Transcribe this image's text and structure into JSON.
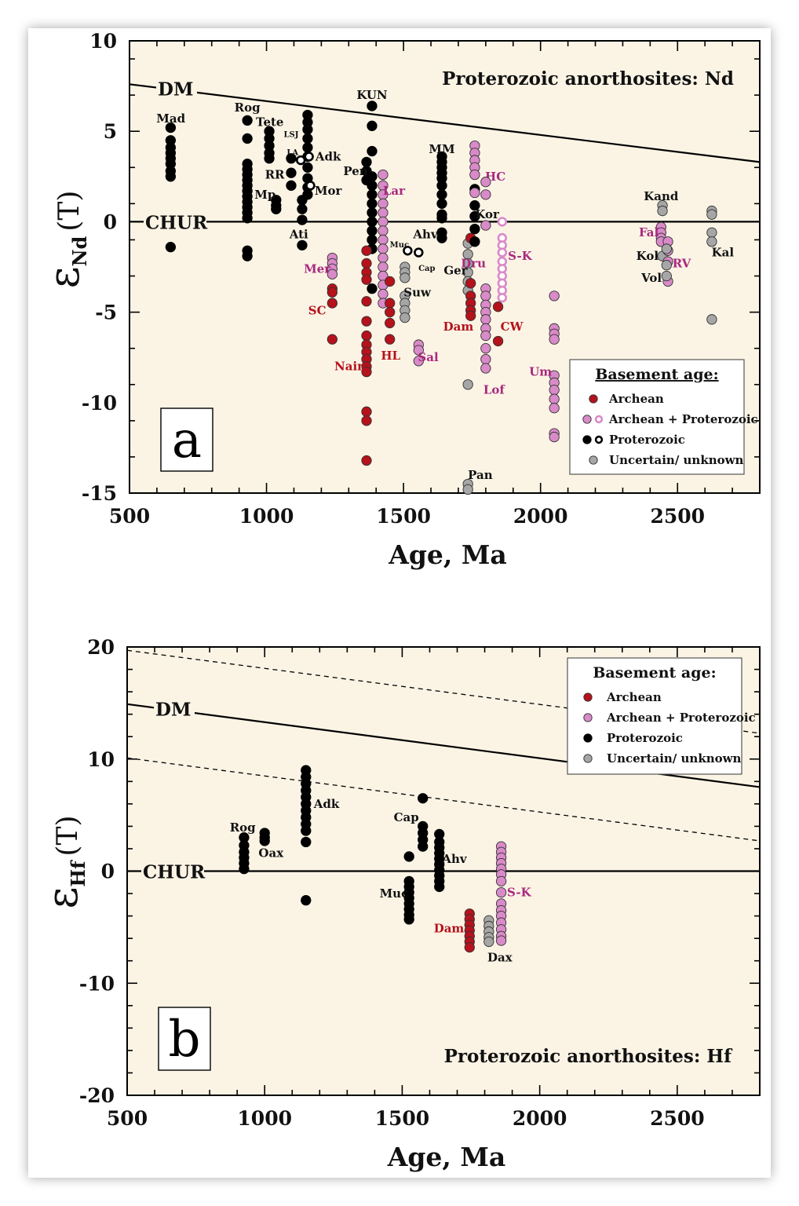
{
  "colors": {
    "archean": "#b5121b",
    "archean_proterozoic": "#d98ac8",
    "proterozoic": "#000000",
    "unknown": "#a6a6a6",
    "background": "#fbf4e5"
  },
  "chart_data": [
    {
      "type": "scatter",
      "panel_letter": "a",
      "title": "Proterozoic anorthosites: Nd",
      "xlabel": "Age, Ma",
      "ylabel_symbol": "ε",
      "ylabel_sub": "Nd",
      "ylabel_tail": "(T)",
      "xlim": [
        500,
        2800
      ],
      "ylim": [
        -15,
        10
      ],
      "xticks": [
        500,
        1000,
        1500,
        2000,
        2500
      ],
      "yticks": [
        -15,
        -10,
        -5,
        0,
        5,
        10
      ],
      "ref_lines": [
        {
          "label": "DM",
          "x": [
            500,
            2800
          ],
          "y": [
            7.6,
            3.3
          ],
          "style": "solid"
        },
        {
          "label": "CHUR",
          "x": [
            500,
            2800
          ],
          "y": [
            0,
            0
          ],
          "style": "solid"
        }
      ],
      "legend": {
        "title": "Basement age:",
        "placement": "bottom-right",
        "items": [
          {
            "label": "Archean",
            "key": "archean",
            "open": false
          },
          {
            "label": "Archean + Proterozoic",
            "key": "archean_proterozoic",
            "open": true
          },
          {
            "label": "Proterozoic",
            "key": "proterozoic",
            "open": true
          },
          {
            "label": "Uncertain/  unknown",
            "key": "unknown",
            "open": false
          }
        ]
      },
      "groups": [
        {
          "label": "Mad",
          "key": "proterozoic",
          "x": 650,
          "y": [
            5.2,
            4.5,
            4.1,
            3.8,
            3.5,
            3.2,
            2.8,
            2.5,
            -1.4
          ],
          "lx": 651,
          "ly": 5.7
        },
        {
          "label": "Rog",
          "key": "proterozoic",
          "x": 930,
          "y": [
            5.6,
            4.6,
            3.2,
            2.9,
            2.6,
            2.3,
            2.0,
            1.7,
            1.4,
            1.1,
            0.8,
            0.5,
            0.2,
            -1.6,
            -1.9
          ],
          "lx": 930,
          "ly": 6.3
        },
        {
          "label": "Tete",
          "key": "proterozoic",
          "x": 1010,
          "y": [
            5.0,
            4.6,
            4.2,
            3.8,
            3.5
          ],
          "lx": 1012,
          "ly": 5.5
        },
        {
          "label": "Mp",
          "key": "proterozoic",
          "x": 1035,
          "y": [
            1.2,
            0.9,
            0.7
          ],
          "lx": 995,
          "ly": 1.5
        },
        {
          "label": "RR",
          "key": "proterozoic",
          "x": 1090,
          "y": [
            3.5,
            2.7,
            2.0
          ],
          "lx": 1030,
          "ly": 2.6
        },
        {
          "label": "Ati",
          "key": "proterozoic",
          "x": 1130,
          "y": [
            1.2,
            0.7,
            0.1,
            -1.3
          ],
          "lx": 1118,
          "ly": -0.7
        },
        {
          "label": "LSJ",
          "key": "proterozoic",
          "x": 1150,
          "y": [
            5.9,
            5.5,
            5.1,
            4.6,
            4.1,
            3.6,
            3.0,
            2.4,
            1.9,
            1.5
          ],
          "lx": 1090,
          "ly": 4.9,
          "small": true
        },
        {
          "label": "LA",
          "key": "proterozoic",
          "open": true,
          "x": 1125,
          "y": [
            3.4
          ],
          "lx": 1095,
          "ly": 3.9,
          "small": true
        },
        {
          "label": "Adk",
          "key": "proterozoic",
          "open": true,
          "x": 1155,
          "y": [
            3.6
          ],
          "lx": 1225,
          "ly": 3.6
        },
        {
          "label": "Mor",
          "key": "proterozoic",
          "open": true,
          "x": 1160,
          "y": [
            2.0
          ],
          "lx": 1225,
          "ly": 1.7
        },
        {
          "label": "KUN",
          "key": "proterozoic",
          "x": 1385,
          "y": [
            6.4,
            5.3,
            3.9,
            2.5,
            2.0,
            1.5,
            1.0,
            0.5,
            0.0,
            -0.5,
            -1.0,
            -1.5,
            -3.7
          ],
          "lx": 1385,
          "ly": 7.0
        },
        {
          "label": "Pen",
          "key": "proterozoic",
          "x": 1365,
          "y": [
            3.3,
            2.8,
            2.3
          ],
          "lx": 1325,
          "ly": 2.8
        },
        {
          "label": "Nain",
          "key": "archean",
          "x": 1365,
          "y": [
            -1.6,
            -2.3,
            -2.8,
            -3.2,
            -4.4,
            -5.5,
            -6.3,
            -6.8,
            -7.2,
            -7.6,
            -8.0,
            -8.3,
            -10.5,
            -11.0,
            -13.2
          ],
          "lx": 1305,
          "ly": -8.0
        },
        {
          "label": "Mer",
          "key": "archean_proterozoic",
          "x": 1240,
          "y": [
            -2.0,
            -2.3,
            -2.6,
            -2.9
          ],
          "lx": 1185,
          "ly": -2.6
        },
        {
          "label": "SC",
          "key": "archean",
          "x": 1240,
          "y": [
            -3.7,
            -3.9,
            -4.5,
            -6.5
          ],
          "lx": 1185,
          "ly": -4.9
        },
        {
          "label": "Lar",
          "key": "archean_proterozoic",
          "x": 1425,
          "y": [
            2.6,
            2.0,
            1.5,
            1.0,
            0.5,
            0.0,
            -0.5,
            -1.0,
            -1.5,
            -2.0,
            -2.5,
            -3.0,
            -3.5,
            -4.0,
            -4.5
          ],
          "lx": 1465,
          "ly": 1.7
        },
        {
          "label": "HL",
          "key": "archean",
          "x": 1450,
          "y": [
            -3.3,
            -4.5,
            -5.0,
            -5.6,
            -6.5
          ],
          "lx": 1453,
          "ly": -7.4
        },
        {
          "label": "Sal",
          "key": "archean_proterozoic",
          "x": 1555,
          "y": [
            -6.8,
            -7.1,
            -7.7
          ],
          "lx": 1590,
          "ly": -7.5
        },
        {
          "label": "Muc",
          "key": "proterozoic",
          "open": true,
          "x": 1515,
          "y": [
            -1.6
          ],
          "lx": 1485,
          "ly": -1.2,
          "small": true
        },
        {
          "label": "Cap",
          "key": "proterozoic",
          "open": true,
          "x": 1555,
          "y": [
            -1.7
          ],
          "lx": 1585,
          "ly": -2.5,
          "small": true
        },
        {
          "label": "Suw",
          "key": "unknown",
          "x": 1505,
          "y": [
            -2.5,
            -2.8,
            -3.1,
            -4.1,
            -4.5,
            -4.9,
            -5.3
          ],
          "lx": 1550,
          "ly": -3.9
        },
        {
          "label": "Ahv",
          "key": "proterozoic",
          "x": 1640,
          "y": [
            3.6,
            3.3,
            3.0,
            2.7,
            2.4,
            2.0,
            1.5,
            1.0,
            0.4,
            0.2,
            -0.6,
            -0.9
          ],
          "lx": 1580,
          "ly": -0.7
        },
        {
          "label": "MM",
          "key": "proterozoic",
          "x": 1640,
          "y": [],
          "lx": 1640,
          "ly": 4.0
        },
        {
          "label": "Ger",
          "key": "unknown",
          "x": 1735,
          "y": [
            -1.2,
            -1.8,
            -2.3,
            -2.8,
            -3.3,
            -3.8,
            -9.0
          ],
          "lx": 1690,
          "ly": -2.7
        },
        {
          "label": "Pan",
          "key": "unknown",
          "x": 1735,
          "y": [
            -14.5,
            -14.8
          ],
          "lx": 1780,
          "ly": -14.0
        },
        {
          "label": "Dam",
          "key": "archean",
          "x": 1745,
          "y": [
            -0.9,
            -3.4,
            -4.1,
            -4.5,
            -4.9,
            -5.2
          ],
          "lx": 1700,
          "ly": -5.8
        },
        {
          "label": "Kor",
          "key": "proterozoic",
          "x": 1760,
          "y": [
            1.8,
            0.9,
            0.3,
            -0.4,
            -1.1
          ],
          "lx": 1805,
          "ly": 0.4
        },
        {
          "label": "HC",
          "key": "archean_proterozoic",
          "x": 1760,
          "y": [
            4.2,
            3.8,
            3.4,
            3.0,
            2.6,
            1.6
          ],
          "lx": 1835,
          "ly": 2.5
        },
        {
          "label": "Dru",
          "key": "archean_proterozoic",
          "x": 1800,
          "y": [
            2.2,
            1.5,
            -0.2,
            -3.7,
            -4.1,
            -4.6,
            -5.0,
            -5.4,
            -5.9,
            -6.3,
            -7.0,
            -7.6,
            -8.1
          ],
          "lx": 1755,
          "ly": -2.3
        },
        {
          "label": "Lof",
          "key": "archean_proterozoic",
          "x": 1800,
          "y": [],
          "lx": 1830,
          "ly": -9.3
        },
        {
          "label": "S-K",
          "key": "archean_proterozoic",
          "open": true,
          "x": 1860,
          "y": [
            0.0,
            -0.9,
            -1.3,
            -1.7,
            -2.2,
            -2.6,
            -3.0,
            -3.4,
            -3.8,
            -4.2
          ],
          "lx": 1925,
          "ly": -1.9
        },
        {
          "label": "CW",
          "key": "archean",
          "x": 1845,
          "y": [
            -4.7,
            -6.6
          ],
          "lx": 1895,
          "ly": -5.8
        },
        {
          "label": "Um",
          "key": "archean_proterozoic",
          "x": 2050,
          "y": [
            -4.1,
            -5.9,
            -6.2,
            -6.5,
            -8.5,
            -8.9,
            -9.3,
            -9.8,
            -10.3,
            -11.7,
            -11.9
          ],
          "lx": 2000,
          "ly": -8.3
        },
        {
          "label": "Kand",
          "key": "unknown",
          "x": 2445,
          "y": [
            0.9,
            0.6
          ],
          "lx": 2440,
          "ly": 1.4
        },
        {
          "label": "Fal",
          "key": "archean_proterozoic",
          "x": 2440,
          "y": [
            -0.3,
            -0.6,
            -0.9,
            -1.1
          ],
          "lx": 2395,
          "ly": -0.6
        },
        {
          "label": "Kol",
          "key": "unknown",
          "x": 2445,
          "y": [
            -1.9
          ],
          "lx": 2390,
          "ly": -1.9
        },
        {
          "label": "RV",
          "key": "archean_proterozoic",
          "x": 2465,
          "y": [
            -1.1,
            -1.6,
            -2.2,
            -3.3
          ],
          "lx": 2515,
          "ly": -2.3
        },
        {
          "label": "Vol",
          "key": "unknown",
          "x": 2460,
          "y": [
            -1.5,
            -2.4,
            -3.0
          ],
          "lx": 2405,
          "ly": -3.1
        },
        {
          "label": "Kal",
          "key": "unknown",
          "x": 2625,
          "y": [
            0.6,
            0.4,
            -0.6,
            -1.1,
            -5.4
          ],
          "lx": 2665,
          "ly": -1.7
        }
      ]
    },
    {
      "type": "scatter",
      "panel_letter": "b",
      "title": "Proterozoic anorthosites: Hf",
      "xlabel": "Age, Ma",
      "ylabel_symbol": "ε",
      "ylabel_sub": "Hf",
      "ylabel_tail": "(T)",
      "xlim": [
        500,
        2800
      ],
      "ylim": [
        -20,
        20
      ],
      "xticks": [
        500,
        1000,
        1500,
        2000,
        2500
      ],
      "yticks": [
        -20,
        -10,
        0,
        10,
        20
      ],
      "ref_lines": [
        {
          "label": "DM",
          "x": [
            500,
            2800
          ],
          "y": [
            14.9,
            7.5
          ],
          "style": "solid"
        },
        {
          "label": "",
          "x": [
            500,
            2800
          ],
          "y": [
            19.7,
            12.3
          ],
          "style": "dashed"
        },
        {
          "label": "",
          "x": [
            500,
            2800
          ],
          "y": [
            10.1,
            2.7
          ],
          "style": "dashed"
        },
        {
          "label": "CHUR",
          "x": [
            500,
            2800
          ],
          "y": [
            0,
            0
          ],
          "style": "solid"
        }
      ],
      "legend": {
        "title": "Basement age:",
        "placement": "top-right",
        "items": [
          {
            "label": "Archean",
            "key": "archean",
            "open": false
          },
          {
            "label": "Archean + Proterozoic",
            "key": "archean_proterozoic",
            "open": false
          },
          {
            "label": "Proterozoic",
            "key": "proterozoic",
            "open": false
          },
          {
            "label": "Uncertain/  unknown",
            "key": "unknown",
            "open": false
          }
        ]
      },
      "groups": [
        {
          "label": "Rog",
          "key": "proterozoic",
          "x": 925,
          "y": [
            3.0,
            2.3,
            1.7,
            1.2,
            0.7,
            0.2
          ],
          "lx": 920,
          "ly": 3.9
        },
        {
          "label": "Oax",
          "key": "proterozoic",
          "x": 1000,
          "y": [
            3.4,
            3.0,
            2.7
          ],
          "lx": 1023,
          "ly": 1.6
        },
        {
          "label": "Adk",
          "key": "proterozoic",
          "x": 1150,
          "y": [
            9.0,
            8.4,
            7.8,
            7.2,
            6.6,
            6.0,
            5.4,
            4.8,
            4.2,
            3.6,
            2.6,
            -2.6
          ],
          "lx": 1225,
          "ly": 6.0
        },
        {
          "label": "Cap",
          "key": "proterozoic",
          "x": 1575,
          "y": [
            6.5,
            4.0,
            3.4,
            2.8,
            2.2
          ],
          "lx": 1515,
          "ly": 4.8
        },
        {
          "label": "Ahv",
          "key": "proterozoic",
          "x": 1635,
          "y": [
            3.3,
            2.6,
            2.1,
            1.6,
            1.1,
            0.6,
            0.1,
            -0.4,
            -0.9,
            -1.4
          ],
          "lx": 1690,
          "ly": 1.1
        },
        {
          "label": "Muc",
          "key": "proterozoic",
          "x": 1525,
          "y": [
            1.3,
            -0.9,
            -1.4,
            -1.9,
            -2.4,
            -2.9,
            -3.4,
            -3.9,
            -4.3
          ],
          "lx": 1470,
          "ly": -2.0
        },
        {
          "label": "Dam",
          "key": "archean",
          "x": 1745,
          "y": [
            -3.8,
            -4.3,
            -4.8,
            -5.3,
            -5.8,
            -6.3,
            -6.8
          ],
          "lx": 1670,
          "ly": -5.1
        },
        {
          "label": "Dax",
          "key": "unknown",
          "x": 1815,
          "y": [
            -4.4,
            -4.9,
            -5.4,
            -5.9,
            -6.3
          ],
          "lx": 1855,
          "ly": -7.7
        },
        {
          "label": "S-K",
          "key": "archean_proterozoic",
          "x": 1860,
          "y": [
            2.2,
            1.7,
            1.2,
            0.7,
            0.2,
            -0.3,
            -0.9,
            -1.9,
            -2.9,
            -3.5,
            -4.0,
            -4.6,
            -5.2,
            -5.8,
            -6.2
          ],
          "lx": 1925,
          "ly": -1.9
        }
      ]
    }
  ]
}
